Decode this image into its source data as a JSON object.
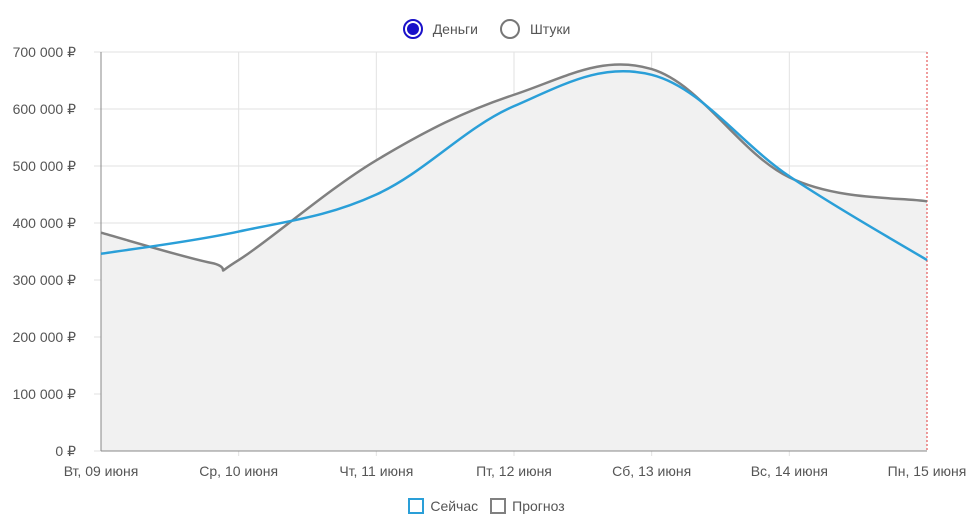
{
  "toggle": {
    "options": [
      {
        "label": "Деньги",
        "selected": true
      },
      {
        "label": "Штуки",
        "selected": false
      }
    ],
    "accent": "#1a11c9"
  },
  "chart_data": {
    "type": "line",
    "categories": [
      "Вт, 09 июня",
      "Ср, 10 июня",
      "Чт, 11 июня",
      "Пт, 12 июня",
      "Сб, 13 июня",
      "Вс, 14 июня",
      "Пн, 15 июня"
    ],
    "y_ticks": [
      "0 ₽",
      "100 000 ₽",
      "200 000 ₽",
      "300 000 ₽",
      "400 000 ₽",
      "500 000 ₽",
      "600 000 ₽",
      "700 000 ₽"
    ],
    "ylim": [
      0,
      700000
    ],
    "grid": true,
    "legend_position": "bottom",
    "series": [
      {
        "name": "Сейчас",
        "color": "#2a9fd8",
        "fill": false,
        "x": [
          0,
          1,
          2,
          3,
          4,
          5,
          6
        ],
        "y": [
          346000,
          385000,
          450000,
          605000,
          660000,
          482000,
          335000
        ]
      },
      {
        "name": "Прогноз",
        "color": "#808080",
        "fill": true,
        "fill_color": "#f1f1f1",
        "x": [
          0,
          0.8,
          1,
          2,
          3,
          4,
          5,
          6
        ],
        "y": [
          383000,
          330000,
          335000,
          510000,
          625000,
          670000,
          480000,
          438000
        ]
      }
    ],
    "current_marker_color": "#e23b3b"
  },
  "legend": {
    "items": [
      {
        "label": "Сейчас",
        "color": "#2a9fd8"
      },
      {
        "label": "Прогноз",
        "color": "#808080"
      }
    ]
  }
}
